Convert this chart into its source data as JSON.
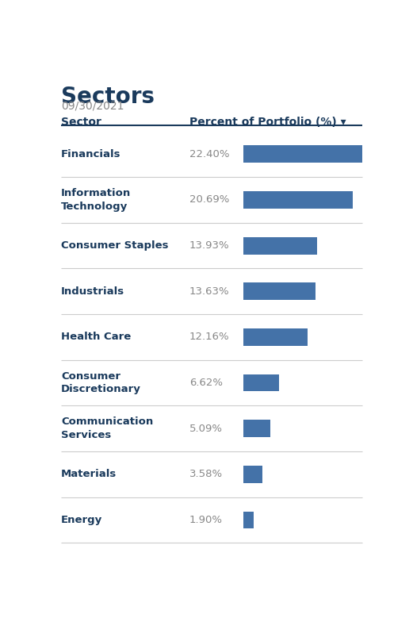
{
  "title": "Sectors",
  "date": "09/30/2021",
  "col1_header": "Sector",
  "col2_header": "Percent of Portfolio (%)",
  "rows": [
    {
      "sector": "Financials",
      "pct_str": "22.40%",
      "pct": 22.4
    },
    {
      "sector": "Information\nTechnology",
      "pct_str": "20.69%",
      "pct": 20.69
    },
    {
      "sector": "Consumer Staples",
      "pct_str": "13.93%",
      "pct": 13.93
    },
    {
      "sector": "Industrials",
      "pct_str": "13.63%",
      "pct": 13.63
    },
    {
      "sector": "Health Care",
      "pct_str": "12.16%",
      "pct": 12.16
    },
    {
      "sector": "Consumer\nDiscretionary",
      "pct_str": "6.62%",
      "pct": 6.62
    },
    {
      "sector": "Communication\nServices",
      "pct_str": "5.09%",
      "pct": 5.09
    },
    {
      "sector": "Materials",
      "pct_str": "3.58%",
      "pct": 3.58
    },
    {
      "sector": "Energy",
      "pct_str": "1.90%",
      "pct": 1.9
    }
  ],
  "bar_color": "#4472a8",
  "bar_max_pct": 22.4,
  "title_color": "#1a3a5c",
  "date_color": "#888888",
  "header_color": "#1a3a5c",
  "sector_color": "#1a3a5c",
  "pct_color": "#888888",
  "divider_color": "#cccccc",
  "header_line_color": "#1a3a5c",
  "background_color": "#ffffff",
  "fig_width": 5.21,
  "fig_height": 7.79
}
